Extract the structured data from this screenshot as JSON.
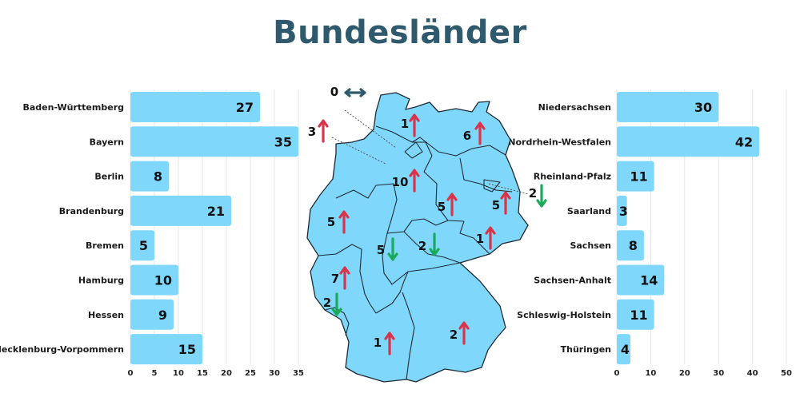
{
  "title": "Bundesländer",
  "colors": {
    "bar": "#7fd8fb",
    "map_fill": "#7fd8fb",
    "map_stroke": "#1f2a33",
    "up_arrow": "#d9344a",
    "down_arrow": "#1aab5a",
    "neutral_arrow": "#2f5a6e",
    "title": "#2f5a6e",
    "grid": "#e6e6e6"
  },
  "chart_data": [
    {
      "type": "bar",
      "orientation": "horizontal",
      "categories": [
        "Baden-Württemberg",
        "Bayern",
        "Berlin",
        "Brandenburg",
        "Bremen",
        "Hamburg",
        "Hessen",
        "Mecklenburg-Vorpommern"
      ],
      "values": [
        27,
        35,
        8,
        21,
        5,
        10,
        9,
        15
      ],
      "xlim": [
        0,
        35
      ],
      "xticks": [
        "0",
        "5",
        "10",
        "15",
        "20",
        "25",
        "30",
        "35"
      ],
      "grid": true
    },
    {
      "type": "bar",
      "orientation": "horizontal",
      "categories": [
        "Niedersachsen",
        "Nordrhein-Westfalen",
        "Rheinland-Pfalz",
        "Saarland",
        "Sachsen",
        "Sachsen-Anhalt",
        "Schleswig-Holstein",
        "Thüringen"
      ],
      "values": [
        30,
        42,
        11,
        3,
        8,
        14,
        11,
        4
      ],
      "xlim": [
        0,
        50
      ],
      "xticks": [
        "0",
        "10",
        "20",
        "30",
        "40",
        "50"
      ],
      "grid": true
    }
  ],
  "map_labels": [
    {
      "value": "0",
      "trend": "neutral",
      "icon": "double-arrow-icon"
    },
    {
      "value": "1",
      "trend": "up",
      "icon": "arrow-up-icon"
    },
    {
      "value": "6",
      "trend": "up",
      "icon": "arrow-up-icon"
    },
    {
      "value": "3",
      "trend": "up",
      "icon": "arrow-up-icon"
    },
    {
      "value": "10",
      "trend": "up",
      "icon": "arrow-up-icon"
    },
    {
      "value": "2",
      "trend": "down",
      "icon": "arrow-down-icon"
    },
    {
      "value": "5",
      "trend": "up",
      "icon": "arrow-up-icon"
    },
    {
      "value": "5",
      "trend": "up",
      "icon": "arrow-up-icon"
    },
    {
      "value": "5",
      "trend": "up",
      "icon": "arrow-up-icon"
    },
    {
      "value": "1",
      "trend": "up",
      "icon": "arrow-up-icon"
    },
    {
      "value": "5",
      "trend": "down",
      "icon": "arrow-down-icon"
    },
    {
      "value": "2",
      "trend": "down",
      "icon": "arrow-down-icon"
    },
    {
      "value": "7",
      "trend": "up",
      "icon": "arrow-up-icon"
    },
    {
      "value": "2",
      "trend": "down",
      "icon": "arrow-down-icon"
    },
    {
      "value": "1",
      "trend": "up",
      "icon": "arrow-up-icon"
    },
    {
      "value": "2",
      "trend": "up",
      "icon": "arrow-up-icon"
    }
  ]
}
